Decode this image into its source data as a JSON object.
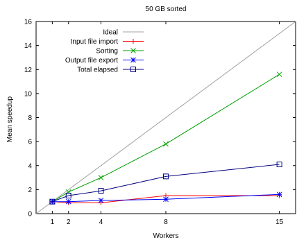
{
  "chart_data": {
    "type": "line",
    "title": "50 GB sorted",
    "xlabel": "Workers",
    "ylabel": "Mean speedup",
    "xlim": [
      0,
      16
    ],
    "ylim": [
      0,
      16
    ],
    "xticks": [
      1,
      2,
      4,
      8,
      15
    ],
    "yticks": [
      0,
      2,
      4,
      6,
      8,
      10,
      12,
      14,
      16
    ],
    "grid": false,
    "legend_position": "top-left",
    "x": [
      1,
      2,
      4,
      8,
      15
    ],
    "series": [
      {
        "name": "Ideal",
        "marker": "none",
        "color": "#a0a0a0",
        "x": [
          0,
          16
        ],
        "values": [
          0,
          16
        ]
      },
      {
        "name": "Input file import",
        "marker": "plus",
        "color": "#ff0000",
        "values": [
          1.0,
          0.9,
          0.9,
          1.5,
          1.5
        ]
      },
      {
        "name": "Sorting",
        "marker": "x",
        "color": "#00a000",
        "values": [
          1.0,
          1.8,
          3.0,
          5.8,
          11.6
        ]
      },
      {
        "name": "Output file export",
        "marker": "star",
        "color": "#0000ff",
        "values": [
          1.0,
          1.0,
          1.1,
          1.2,
          1.6
        ]
      },
      {
        "name": "Total elapsed",
        "marker": "square",
        "color": "#000080",
        "values": [
          1.0,
          1.5,
          1.9,
          3.1,
          4.1
        ]
      }
    ]
  }
}
